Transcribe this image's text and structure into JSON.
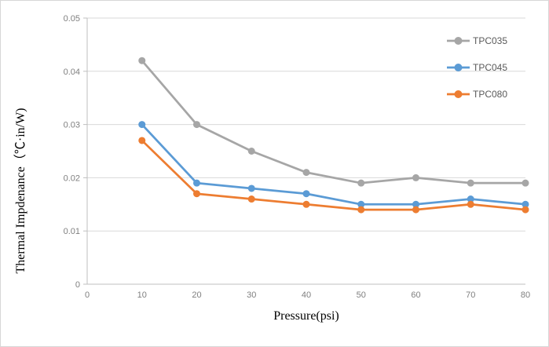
{
  "chart_data": {
    "type": "line",
    "title": "",
    "xlabel": "Pressure(psi)",
    "ylabel": "Thermal Impdenance（℃·in/W)",
    "x": [
      10,
      20,
      30,
      40,
      50,
      60,
      70,
      80
    ],
    "series": [
      {
        "name": "TPC035",
        "color": "#A6A6A6",
        "values": [
          0.042,
          0.03,
          0.025,
          0.021,
          0.019,
          0.02,
          0.019,
          0.019
        ]
      },
      {
        "name": "TPC045",
        "color": "#5B9BD5",
        "values": [
          0.03,
          0.019,
          0.018,
          0.017,
          0.015,
          0.015,
          0.016,
          0.015
        ]
      },
      {
        "name": "TPC080",
        "color": "#ED7D31",
        "values": [
          0.027,
          0.017,
          0.016,
          0.015,
          0.014,
          0.014,
          0.015,
          0.014
        ]
      }
    ],
    "xlim": [
      0,
      80
    ],
    "ylim": [
      0,
      0.05
    ],
    "x_tick_labels": [
      "0",
      "10",
      "20",
      "30",
      "40",
      "50",
      "60",
      "70",
      "80"
    ],
    "y_tick_labels": [
      "0",
      "0.01",
      "0.02",
      "0.03",
      "0.04",
      "0.05"
    ],
    "x_tick_step": 10,
    "y_tick_step": 0.01,
    "grid": "horizontal",
    "legend_position": "inside-top-right",
    "legend": [
      "TPC035",
      "TPC045",
      "TPC080"
    ]
  },
  "styles": {
    "background": "#FFFFFF",
    "chart_border_color": "#D7D7D7",
    "gridline_color": "#D9D9D9",
    "axis_line_color": "#BFBFBF",
    "tick_mark_color": "#BFBFBF",
    "tick_label_color": "#7F7F7F",
    "legend_text_color": "#595959",
    "axis_title_color": "#1A1A1A"
  }
}
